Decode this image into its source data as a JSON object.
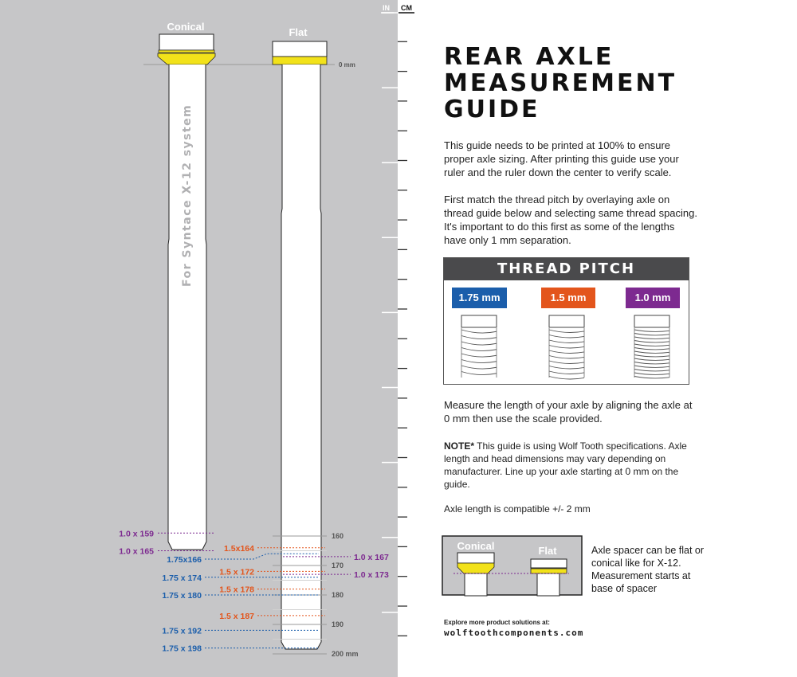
{
  "colors": {
    "background_gray": "#c6c6c8",
    "spacer_yellow": "#f2e21a",
    "pitch_1_75": "#1b5eab",
    "pitch_1_5": "#e3551c",
    "pitch_1_0": "#7d2a90",
    "header_dark": "#4a4a4c"
  },
  "ruler": {
    "in_label": "IN",
    "cm_label": "CM"
  },
  "axles": {
    "conical_label": "Conical",
    "flat_label": "Flat",
    "zero_label": "0 mm",
    "vertical_text": "For Syntace X-12 system"
  },
  "scale_labels": [
    {
      "mm": 160,
      "text": "160"
    },
    {
      "mm": 170,
      "text": "170"
    },
    {
      "mm": 180,
      "text": "180"
    },
    {
      "mm": 190,
      "text": "190"
    },
    {
      "mm": 200,
      "text": "200 mm"
    }
  ],
  "axle_marks": [
    {
      "text": "1.0 x 159",
      "pitch": "1.0",
      "mm": 159,
      "side": "left"
    },
    {
      "text": "1.0 x 165",
      "pitch": "1.0",
      "mm": 165,
      "side": "left"
    },
    {
      "text": "1.5x164",
      "pitch": "1.5",
      "mm": 164,
      "side": "mid"
    },
    {
      "text": "1.75x166",
      "pitch": "1.75",
      "mm": 166,
      "side": "left2"
    },
    {
      "text": "1.0 x 167",
      "pitch": "1.0",
      "mm": 167,
      "side": "right"
    },
    {
      "text": "1.5 x 172",
      "pitch": "1.5",
      "mm": 172,
      "side": "mid"
    },
    {
      "text": "1.0 x 173",
      "pitch": "1.0",
      "mm": 173,
      "side": "right"
    },
    {
      "text": "1.75 x 174",
      "pitch": "1.75",
      "mm": 174,
      "side": "left2"
    },
    {
      "text": "1.5 x 178",
      "pitch": "1.5",
      "mm": 178,
      "side": "mid"
    },
    {
      "text": "1.75 x 180",
      "pitch": "1.75",
      "mm": 180,
      "side": "left2"
    },
    {
      "text": "1.5 x 187",
      "pitch": "1.5",
      "mm": 187,
      "side": "mid"
    },
    {
      "text": "1.75 x 192",
      "pitch": "1.75",
      "mm": 192,
      "side": "left2"
    },
    {
      "text": "1.75 x 198",
      "pitch": "1.75",
      "mm": 198,
      "side": "left2"
    }
  ],
  "guide": {
    "title_lines": [
      "REAR AXLE",
      "MEASUREMENT",
      "GUIDE"
    ],
    "intro": "This guide needs to be printed at 100% to ensure proper axle sizing. After printing this guide use your ruler and the ruler down the center to verify scale.",
    "match": "First match the thread pitch by overlaying axle on thread guide below and selecting same thread spacing. It's important to do this first as some of the lengths have only 1 mm separation.",
    "thread_pitch": {
      "title": "THREAD PITCH",
      "badges": [
        "1.75 mm",
        "1.5 mm",
        "1.0 mm"
      ]
    },
    "measure": "Measure the length of your axle by aligning the axle at 0 mm then use the scale provided.",
    "note_label": "NOTE*",
    "note": " This guide is using Wolf Tooth specifications. Axle length and head dimensions may vary depending on manufacturer. Line up your axle starting at 0 mm on the guide.",
    "compat": "Axle length is compatible +/- 2 mm",
    "spacer": {
      "conical_label": "Conical",
      "flat_label": "Flat",
      "note": "Axle spacer can be flat or conical like for X-12. Measurement starts at base of spacer"
    },
    "explore": "Explore more product solutions at:",
    "website": "wolftoothcomponents.com"
  }
}
